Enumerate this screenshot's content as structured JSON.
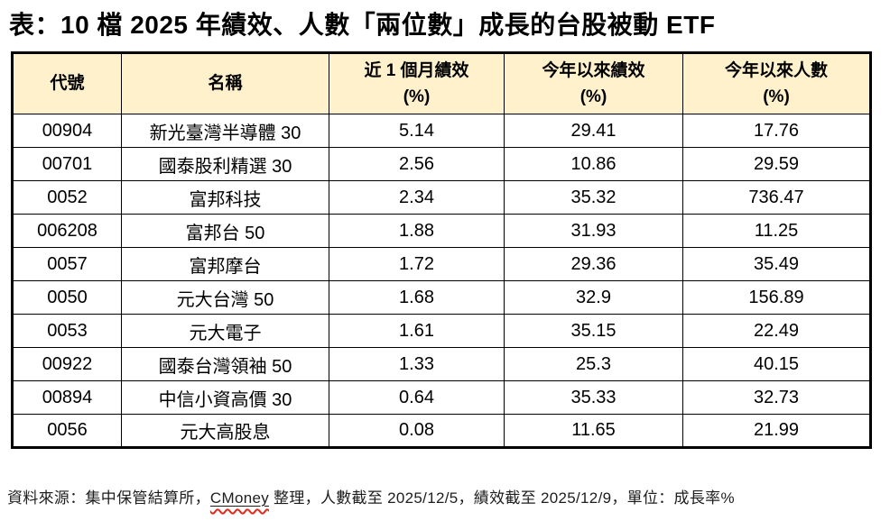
{
  "title": "表：10 檔 2025 年績效、人數「兩位數」成長的台股被動 ETF",
  "table": {
    "columns": [
      {
        "label": "代號",
        "unit": ""
      },
      {
        "label": "名稱",
        "unit": ""
      },
      {
        "label": "近 1 個月績效",
        "unit": "(%)"
      },
      {
        "label": "今年以來績效",
        "unit": "(%)"
      },
      {
        "label": "今年以來人數",
        "unit": "(%)"
      }
    ],
    "cell_names": [
      "code-cell",
      "name-cell",
      "one-month-return-cell",
      "ytd-return-cell",
      "ytd-holders-cell"
    ],
    "rows": [
      [
        "00904",
        "新光臺灣半導體 30",
        "5.14",
        "29.41",
        "17.76"
      ],
      [
        "00701",
        "國泰股利精選 30",
        "2.56",
        "10.86",
        "29.59"
      ],
      [
        "0052",
        "富邦科技",
        "2.34",
        "35.32",
        "736.47"
      ],
      [
        "006208",
        "富邦台 50",
        "1.88",
        "31.93",
        "11.25"
      ],
      [
        "0057",
        "富邦摩台",
        "1.72",
        "29.36",
        "35.49"
      ],
      [
        "0050",
        "元大台灣 50",
        "1.68",
        "32.9",
        "156.89"
      ],
      [
        "0053",
        "元大電子",
        "1.61",
        "35.15",
        "22.49"
      ],
      [
        "00922",
        "國泰台灣領袖 50",
        "1.33",
        "25.3",
        "40.15"
      ],
      [
        "00894",
        "中信小資高價 30",
        "0.64",
        "35.33",
        "32.73"
      ],
      [
        "0056",
        "元大高股息",
        "0.08",
        "11.65",
        "21.99"
      ]
    ]
  },
  "footer": {
    "prefix": "資料來源：集中保管結算所，",
    "highlight": "CMoney",
    "suffix": " 整理，人數截至 2025/12/5，績效截至 2025/12/9，單位：成長率%"
  },
  "colors": {
    "header_background": "#FEF1CC",
    "table_border": "#000000",
    "spellcheck_squiggle": "#E02A1A"
  }
}
